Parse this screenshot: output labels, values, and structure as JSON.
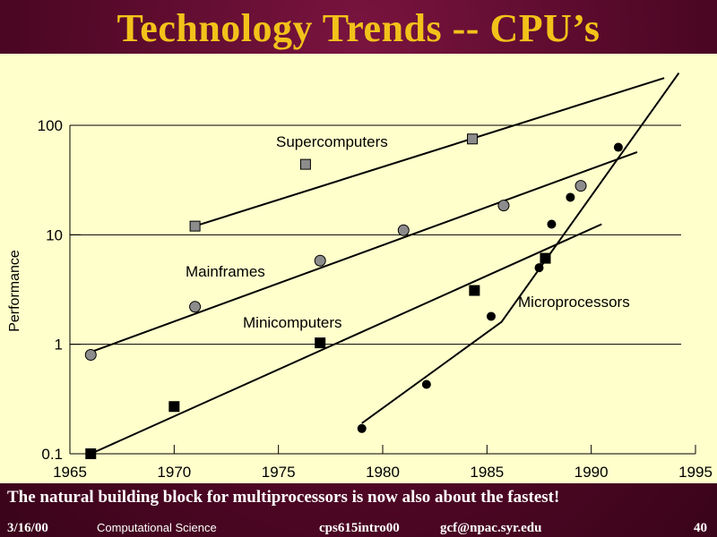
{
  "slide": {
    "title": "Technology Trends -- CPU’s",
    "caption": "The natural building block for multiprocessors is now also about the fastest!",
    "footer": {
      "date": "3/16/00",
      "course": "Computational Science",
      "file": "cps615intro00",
      "email": "gcf@npac.syr.edu",
      "page": "40"
    },
    "colors": {
      "background": "#5a0a2a",
      "panel": "#ffffcc",
      "title": "#f2c21a"
    }
  },
  "chart_data": {
    "type": "scatter",
    "title": "",
    "xlabel": "",
    "ylabel": "Performance",
    "yscale": "log",
    "xlim": [
      1965,
      1995
    ],
    "ylim": [
      0.1,
      100
    ],
    "xticks": [
      "1965",
      "1970",
      "1975",
      "1980",
      "1985",
      "1990",
      "1995"
    ],
    "yticks": [
      "0.1",
      "1",
      "10",
      "100"
    ],
    "series": [
      {
        "name": "Supercomputers",
        "marker": "gray-square",
        "points": [
          [
            1971,
            12
          ],
          [
            1976.3,
            44
          ],
          [
            1984.3,
            75
          ]
        ],
        "trend": [
          [
            1971,
            12
          ],
          [
            1993.5,
            270
          ]
        ]
      },
      {
        "name": "Mainframes",
        "marker": "gray-circle",
        "points": [
          [
            1966,
            0.8
          ],
          [
            1971,
            2.2
          ],
          [
            1977,
            5.8
          ],
          [
            1981,
            11
          ],
          [
            1985.8,
            18.5
          ],
          [
            1989.5,
            28
          ]
        ],
        "trend": [
          [
            1966,
            0.85
          ],
          [
            1992.2,
            57
          ]
        ]
      },
      {
        "name": "Minicomputers",
        "marker": "black-square",
        "points": [
          [
            1966,
            0.1
          ],
          [
            1970,
            0.27
          ],
          [
            1977,
            1.03
          ],
          [
            1984.4,
            3.1
          ],
          [
            1987.8,
            6.1
          ]
        ],
        "trend": [
          [
            1966,
            0.1
          ],
          [
            1990.5,
            12.5
          ]
        ]
      },
      {
        "name": "Microprocessors",
        "marker": "black-circle",
        "points": [
          [
            1979,
            0.17
          ],
          [
            1982.1,
            0.43
          ],
          [
            1985.2,
            1.8
          ],
          [
            1987.5,
            5
          ],
          [
            1988.1,
            12.5
          ],
          [
            1989,
            22
          ],
          [
            1991.3,
            63
          ]
        ],
        "trend": [
          [
            1979,
            0.19
          ],
          [
            1985.7,
            1.6
          ],
          [
            1994.2,
            300
          ]
        ]
      }
    ]
  }
}
